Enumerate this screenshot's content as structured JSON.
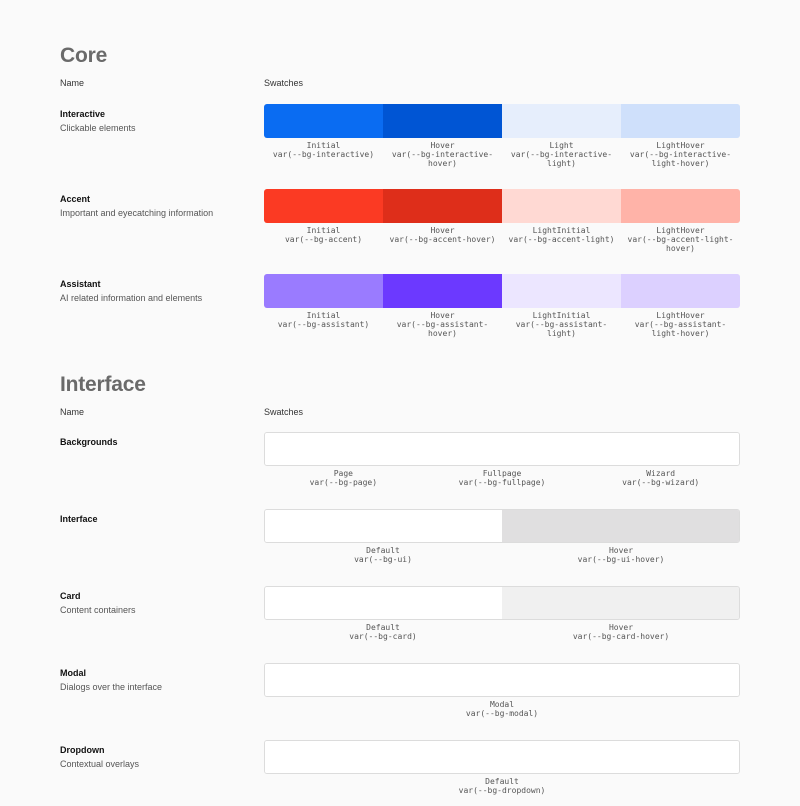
{
  "core": {
    "title": "Core",
    "name_header": "Name",
    "swatches_header": "Swatches",
    "rows": [
      {
        "name": "Interactive",
        "desc": "Clickable elements",
        "swatches": [
          {
            "label": "Initial",
            "var": "var(--bg-interactive)",
            "color": "#0a6cf2"
          },
          {
            "label": "Hover",
            "var": "var(--bg-interactive-hover)",
            "color": "#0055d4"
          },
          {
            "label": "Light",
            "var": "var(--bg-interactive-light)",
            "color": "#e6eefc"
          },
          {
            "label": "LightHover",
            "var": "var(--bg-interactive-light-hover)",
            "color": "#cfe0fb"
          }
        ]
      },
      {
        "name": "Accent",
        "desc": "Important and eyecatching information",
        "swatches": [
          {
            "label": "Initial",
            "var": "var(--bg-accent)",
            "color": "#fb3a23"
          },
          {
            "label": "Hover",
            "var": "var(--bg-accent-hover)",
            "color": "#de2e1a"
          },
          {
            "label": "LightInitial",
            "var": "var(--bg-accent-light)",
            "color": "#ffd9d3"
          },
          {
            "label": "LightHover",
            "var": "var(--bg-accent-light-hover)",
            "color": "#ffb3a8"
          }
        ]
      },
      {
        "name": "Assistant",
        "desc": "AI related information and elements",
        "swatches": [
          {
            "label": "Initial",
            "var": "var(--bg-assistant)",
            "color": "#9a7bff"
          },
          {
            "label": "Hover",
            "var": "var(--bg-assistant-hover)",
            "color": "#6c39ff"
          },
          {
            "label": "LightInitial",
            "var": "var(--bg-assistant-light)",
            "color": "#ece6ff"
          },
          {
            "label": "LightHover",
            "var": "var(--bg-assistant-light-hover)",
            "color": "#dcd0ff"
          }
        ]
      }
    ]
  },
  "interface": {
    "title": "Interface",
    "name_header": "Name",
    "swatches_header": "Swatches",
    "rows": [
      {
        "name": "Backgrounds",
        "desc": "",
        "swatches": [
          {
            "label": "Page",
            "var": "var(--bg-page)",
            "color": "#ffffff"
          },
          {
            "label": "Fullpage",
            "var": "var(--bg-fullpage)",
            "color": "#ffffff"
          },
          {
            "label": "Wizard",
            "var": "var(--bg-wizard)",
            "color": "#ffffff"
          }
        ]
      },
      {
        "name": "Interface",
        "desc": "",
        "swatches": [
          {
            "label": "Default",
            "var": "var(--bg-ui)",
            "color": "#ffffff"
          },
          {
            "label": "Hover",
            "var": "var(--bg-ui-hover)",
            "color": "#e0dfe0"
          }
        ]
      },
      {
        "name": "Card",
        "desc": "Content containers",
        "swatches": [
          {
            "label": "Default",
            "var": "var(--bg-card)",
            "color": "#ffffff"
          },
          {
            "label": "Hover",
            "var": "var(--bg-card-hover)",
            "color": "#f0f0f0"
          }
        ]
      },
      {
        "name": "Modal",
        "desc": "Dialogs over the interface",
        "swatches": [
          {
            "label": "Modal",
            "var": "var(--bg-modal)",
            "color": "#ffffff"
          }
        ]
      },
      {
        "name": "Dropdown",
        "desc": "Contextual overlays",
        "swatches": [
          {
            "label": "Default",
            "var": "var(--bg-dropdown)",
            "color": "#ffffff"
          }
        ]
      }
    ]
  }
}
